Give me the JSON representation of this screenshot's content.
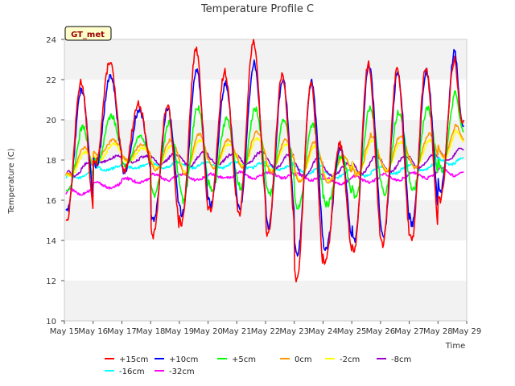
{
  "chart_data": {
    "type": "line",
    "title": "Temperature Profile C",
    "xlabel": "Time",
    "ylabel": "Temperature (C)",
    "badge": "GT_met",
    "ylim": [
      10,
      24
    ],
    "yticks": [
      10,
      12,
      14,
      16,
      18,
      20,
      22,
      24
    ],
    "xlim": [
      15,
      29
    ],
    "xticks": [
      "May 15",
      "May 16",
      "May 17",
      "May 18",
      "May 19",
      "May 20",
      "May 21",
      "May 22",
      "May 23",
      "May 24",
      "May 25",
      "May 26",
      "May 27",
      "May 28",
      "May 29"
    ],
    "grid": "horizontal alternating bands",
    "legend_position": "bottom",
    "series": [
      {
        "name": "+15cm",
        "color": "#ff0000",
        "base": 18.8,
        "mins": [
          15.0,
          17.8,
          17.5,
          14.2,
          14.8,
          15.5,
          15.3,
          14.3,
          12.0,
          12.9,
          13.5,
          13.8,
          14.0,
          16.0
        ],
        "maxs": [
          21.9,
          22.9,
          20.8,
          20.7,
          23.5,
          22.4,
          23.9,
          22.2,
          21.8,
          18.8,
          22.8,
          22.5,
          22.6,
          23.0
        ],
        "phase": 0.58,
        "end": 20.0
      },
      {
        "name": "+10cm",
        "color": "#0000ff",
        "base": 18.9,
        "mins": [
          15.5,
          17.7,
          17.4,
          15.0,
          15.3,
          15.8,
          15.5,
          14.7,
          13.2,
          13.5,
          14.0,
          14.2,
          14.8,
          16.5
        ],
        "maxs": [
          21.5,
          22.2,
          20.5,
          20.5,
          22.5,
          21.8,
          22.8,
          22.0,
          21.9,
          18.6,
          22.7,
          22.3,
          22.4,
          23.5
        ],
        "phase": 0.6,
        "end": 19.7
      },
      {
        "name": "+5cm",
        "color": "#00ff00",
        "base": 18.5,
        "mins": [
          16.5,
          17.9,
          17.7,
          16.2,
          16.0,
          16.5,
          16.6,
          16.3,
          15.6,
          15.8,
          16.1,
          16.3,
          16.5,
          17.5
        ],
        "maxs": [
          19.6,
          20.2,
          19.2,
          19.8,
          20.6,
          20.0,
          20.6,
          20.0,
          19.8,
          18.2,
          20.6,
          20.4,
          20.6,
          21.5
        ],
        "phase": 0.64,
        "end": 19.4
      },
      {
        "name": "0cm",
        "color": "#ff9900",
        "base": 18.4,
        "mins": [
          17.3,
          18.2,
          18.0,
          17.5,
          17.3,
          17.6,
          17.6,
          17.4,
          16.9,
          16.9,
          17.2,
          17.4,
          17.6,
          18.2
        ],
        "maxs": [
          18.6,
          19.0,
          18.8,
          19.0,
          19.3,
          19.0,
          19.4,
          19.0,
          18.9,
          18.2,
          19.3,
          19.2,
          19.3,
          19.9
        ],
        "phase": 0.7,
        "end": 19.0
      },
      {
        "name": "-2cm",
        "color": "#ffff00",
        "base": 18.2,
        "mins": [
          17.2,
          18.0,
          17.9,
          17.6,
          17.4,
          17.6,
          17.7,
          17.5,
          17.0,
          17.0,
          17.3,
          17.5,
          17.6,
          18.1
        ],
        "maxs": [
          18.4,
          18.8,
          18.6,
          18.7,
          19.0,
          18.8,
          19.1,
          18.8,
          18.7,
          18.1,
          19.0,
          18.9,
          19.0,
          19.6
        ],
        "phase": 0.72,
        "end": 18.9
      },
      {
        "name": "-8cm",
        "color": "#9900cc",
        "base": 17.9,
        "mins": [
          17.2,
          17.9,
          17.9,
          17.8,
          17.7,
          17.8,
          17.8,
          17.6,
          17.2,
          17.2,
          17.3,
          17.4,
          17.6,
          18.0
        ],
        "maxs": [
          17.9,
          18.2,
          18.2,
          18.3,
          18.4,
          18.3,
          18.4,
          18.3,
          18.1,
          17.8,
          18.2,
          18.2,
          18.3,
          18.7
        ],
        "phase": 0.85,
        "end": 18.5
      },
      {
        "name": "-16cm",
        "color": "#00ffff",
        "base": 17.6,
        "mins": [
          17.1,
          17.5,
          17.6,
          17.6,
          17.6,
          17.6,
          17.6,
          17.5,
          17.3,
          17.1,
          17.2,
          17.3,
          17.5,
          17.8
        ],
        "maxs": [
          17.4,
          17.7,
          17.8,
          17.9,
          17.9,
          17.9,
          17.9,
          17.8,
          17.7,
          17.5,
          17.6,
          17.7,
          17.8,
          18.1
        ],
        "phase": 0.95,
        "end": 18.1
      },
      {
        "name": "-32cm",
        "color": "#ff00ff",
        "base": 16.9,
        "mins": [
          16.3,
          16.6,
          16.9,
          17.0,
          17.0,
          17.1,
          17.1,
          17.1,
          17.0,
          16.8,
          16.9,
          17.0,
          17.1,
          17.2
        ],
        "maxs": [
          16.6,
          16.9,
          17.1,
          17.3,
          17.3,
          17.3,
          17.4,
          17.4,
          17.3,
          17.1,
          17.2,
          17.3,
          17.4,
          17.6
        ],
        "phase": 1.1,
        "end": 17.4
      }
    ]
  }
}
